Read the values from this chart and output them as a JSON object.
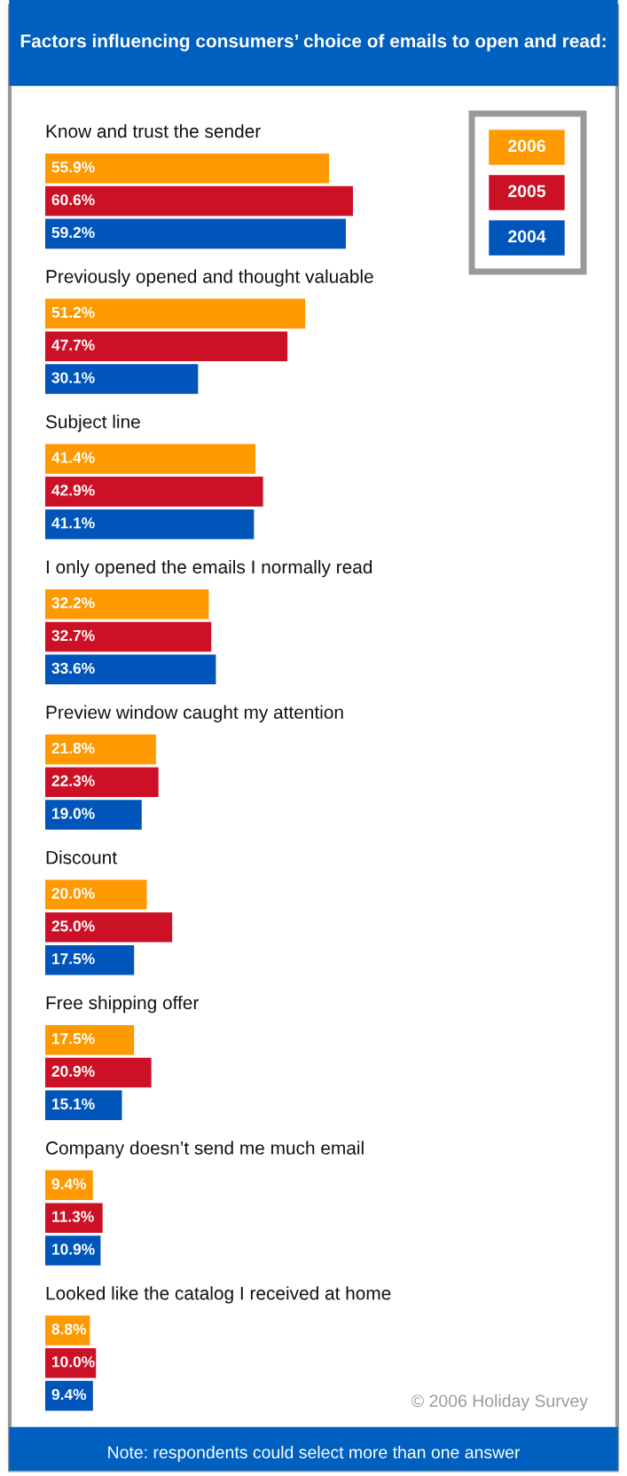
{
  "chart_data": {
    "type": "bar",
    "orientation": "horizontal",
    "title": "Factors influencing consumers’ choice of emails to open and read:",
    "categories": [
      "Know and trust the sender",
      "Previously opened and thought valuable",
      "Subject line",
      "I only opened the emails I normally read",
      "Preview window caught my attention",
      "Discount",
      "Free shipping offer",
      "Company doesn’t send me much email",
      "Looked like the catalog I received at home"
    ],
    "series": [
      {
        "name": "2006",
        "color": "#ff9900",
        "values": [
          55.9,
          51.2,
          41.4,
          32.2,
          21.8,
          20.0,
          17.5,
          9.4,
          8.8
        ],
        "value_labels": [
          "55.9%",
          "51.2%",
          "41.4%",
          "32.2%",
          "21.8%",
          "20.0%",
          "17.5%",
          "9.4%",
          "8.8%"
        ]
      },
      {
        "name": "2005",
        "color": "#cc1126",
        "values": [
          60.6,
          47.7,
          42.9,
          32.7,
          22.3,
          25.0,
          20.9,
          11.3,
          10.0
        ],
        "value_labels": [
          "60.6%",
          "47.7%",
          "42.9%",
          "32.7%",
          "22.3%",
          "25.0%",
          "20.9%",
          "11.3%",
          "10.0%"
        ]
      },
      {
        "name": "2004",
        "color": "#0055bb",
        "values": [
          59.2,
          30.1,
          41.1,
          33.6,
          19.0,
          17.5,
          15.1,
          10.9,
          9.4
        ],
        "value_labels": [
          "59.2%",
          "30.1%",
          "41.1%",
          "33.6%",
          "19.0%",
          "17.5%",
          "15.1%",
          "10.9%",
          "9.4%"
        ]
      }
    ],
    "legend": "top right",
    "annotations": [
      "© 2006 Holiday Survey",
      "Note: respondents could select more than one answer"
    ]
  }
}
